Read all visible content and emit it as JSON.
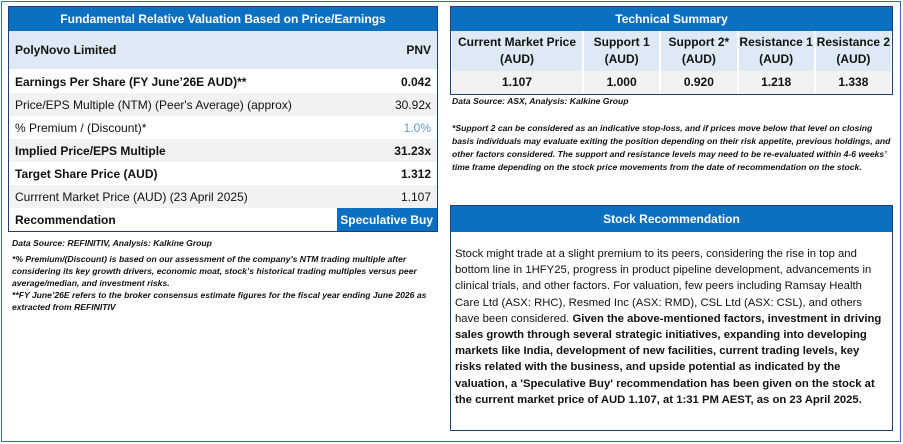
{
  "valuation": {
    "title": "Fundamental Relative Valuation Based on Price/Earnings",
    "company": "PolyNovo Limited",
    "ticker": "PNV",
    "rows": [
      {
        "label": "Earnings Per Share (FY June’26E AUD)**",
        "value": "0.042"
      },
      {
        "label": "Price/EPS Multiple (NTM) (Peer's Average) (approx)",
        "value": "30.92x"
      },
      {
        "label": "% Premium / (Discount)*",
        "value": "1.0%"
      },
      {
        "label": "Implied Price/EPS Multiple",
        "value": "31.23x"
      },
      {
        "label": "Target Share Price (AUD)",
        "value": "1.312"
      },
      {
        "label": "Currrent Market Price (AUD) (23 April 2025)",
        "value": "1.107"
      }
    ],
    "recommendation_label": "Recommendation",
    "recommendation_value": "Speculative Buy",
    "source": "Data Source: REFINITIV, Analysis: Kalkine Group",
    "note1": "*% Premium/(Discount) is based on our assessment of the company’s NTM trading multiple after considering its key growth drivers, economic moat, stock’s historical trading multiples versus peer average/median, and investment risks.",
    "note2": "**FY June’26E refers to the broker consensus estimate figures for the fiscal year ending June 2026 as extracted from REFINITIV"
  },
  "technical": {
    "title": "Technical Summary",
    "columns": [
      {
        "h1": "Current Market Price",
        "h2": "(AUD)",
        "value": "1.107"
      },
      {
        "h1": "Support 1",
        "h2": "(AUD)",
        "value": "1.000"
      },
      {
        "h1": "Support 2*",
        "h2": "(AUD)",
        "value": "0.920"
      },
      {
        "h1": "Resistance 1",
        "h2": "(AUD)",
        "value": "1.218"
      },
      {
        "h1": "Resistance 2",
        "h2": "(AUD)",
        "value": "1.338"
      }
    ],
    "source": "Data Source: ASX, Analysis: Kalkine Group",
    "note": "*Support 2 can be considered as an indicative stop-loss, and if prices move below that level on closing basis individuals may evaluate exiting the position depending on their risk appetite, previous holdings, and other factors considered. The support and resistance levels may need to be re-evaluated within 4-6 weeks’ time frame depending on the stock price movements from the date of recommendation on the stock."
  },
  "stock_recommendation": {
    "title": "Stock Recommendation",
    "text_regular": "Stock might trade at a slight premium to its peers, considering the rise in top and bottom line in 1HFY25, progress in product pipeline development, advancements in clinical trials, and other factors. For valuation, few peers including Ramsay Health Care Ltd (ASX: RHC), Resmed Inc (ASX: RMD), CSL Ltd (ASX: CSL), and others have been considered. ",
    "text_bold": "Given the above-mentioned factors, investment in driving sales growth through several strategic initiatives, expanding into developing markets like India, development of new facilities, current trading levels, key risks related with the business, and upside potential as indicated by the valuation, a 'Speculative Buy' recommendation has been given on the stock at the current market price of AUD 1.107, at 1:31 PM AEST, as on 23 April 2025."
  },
  "colors": {
    "header_blue": "#0b6fc2",
    "light_blue": "#ddeaf6",
    "premium_text": "#5b9bd5"
  }
}
